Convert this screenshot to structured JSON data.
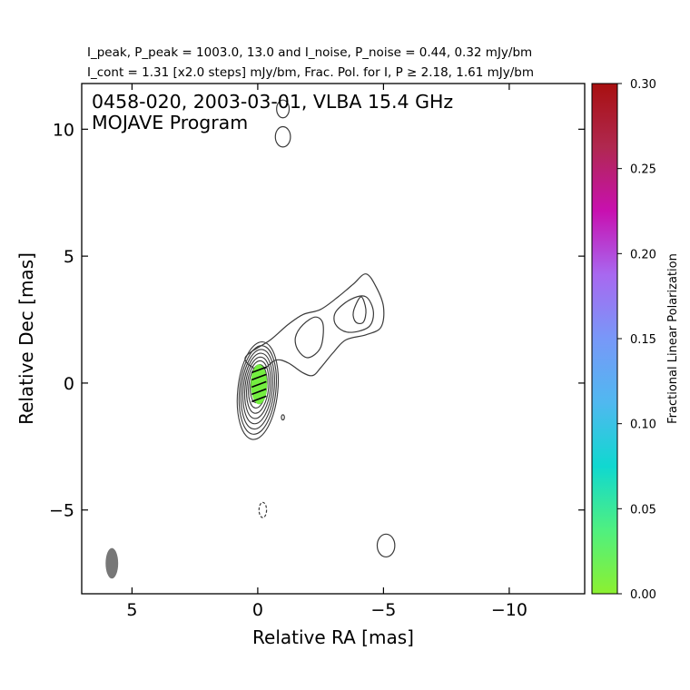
{
  "header": {
    "line1": "I_peak, P_peak = 1003.0, 13.0 and I_noise, P_noise = 0.44, 0.32 mJy/bm",
    "line2": "I_cont = 1.31 [x2.0 steps] mJy/bm, Frac. Pol. for I, P ≥ 2.18, 1.61 mJy/bm"
  },
  "inset_title": {
    "line1": "0458-020, 2003-03-01, VLBA 15.4 GHz",
    "line2": "MOJAVE Program"
  },
  "colorbar": {
    "label": "Fractional Linear Polarization",
    "range": [
      0.0,
      0.3
    ],
    "ticks": [
      "0.00",
      "0.05",
      "0.10",
      "0.15",
      "0.20",
      "0.25",
      "0.30"
    ],
    "colors": [
      "#8cf030",
      "#4ff080",
      "#10d8d0",
      "#50b8f0",
      "#7898f8",
      "#a868f0",
      "#c810b0",
      "#b02850",
      "#a81010"
    ]
  },
  "chart_data": {
    "type": "contour",
    "xlabel": "Relative RA [mas]",
    "ylabel": "Relative Dec [mas]",
    "xlim": [
      7,
      -13
    ],
    "ylim": [
      -8.3,
      11.8
    ],
    "xticks": [
      5,
      0,
      -5,
      -10
    ],
    "yticks": [
      10,
      5,
      0,
      -5
    ],
    "xtick_labels": [
      "5",
      "0",
      "−5",
      "−10"
    ],
    "ytick_labels": [
      "10",
      "5",
      "0",
      "−5"
    ],
    "core": {
      "ra": 0.0,
      "dec": -0.3,
      "ncontours": 10
    },
    "jet_contours": [
      {
        "level": 1,
        "points": [
          [
            0.5,
            1.0
          ],
          [
            -0.5,
            1.7
          ],
          [
            -1.2,
            2.3
          ],
          [
            -1.8,
            2.7
          ],
          [
            -2.5,
            2.9
          ],
          [
            -3.2,
            3.4
          ],
          [
            -3.8,
            3.9
          ],
          [
            -4.3,
            4.3
          ],
          [
            -4.7,
            3.8
          ],
          [
            -5.0,
            3.0
          ],
          [
            -4.9,
            2.2
          ],
          [
            -4.3,
            1.9
          ],
          [
            -3.5,
            1.7
          ],
          [
            -3.0,
            1.2
          ],
          [
            -2.5,
            0.6
          ],
          [
            -2.2,
            0.3
          ],
          [
            -1.8,
            0.4
          ],
          [
            -1.2,
            0.8
          ],
          [
            -0.7,
            0.9
          ],
          [
            -0.1,
            0.5
          ]
        ]
      },
      {
        "level": 2,
        "points": [
          [
            -1.5,
            1.8
          ],
          [
            -1.8,
            2.3
          ],
          [
            -2.3,
            2.6
          ],
          [
            -2.6,
            2.3
          ],
          [
            -2.5,
            1.4
          ],
          [
            -2.0,
            1.0
          ],
          [
            -1.6,
            1.3
          ]
        ]
      },
      {
        "level": 3,
        "points": [
          [
            -3.1,
            2.8
          ],
          [
            -3.7,
            3.3
          ],
          [
            -4.3,
            3.4
          ],
          [
            -4.6,
            2.8
          ],
          [
            -4.4,
            2.2
          ],
          [
            -3.6,
            2.0
          ],
          [
            -3.1,
            2.3
          ]
        ]
      },
      {
        "level": 4,
        "points": [
          [
            -3.8,
            2.8
          ],
          [
            -4.1,
            3.4
          ],
          [
            -4.3,
            2.9
          ],
          [
            -4.2,
            2.4
          ],
          [
            -3.9,
            2.4
          ]
        ]
      }
    ],
    "isolated_contours": [
      {
        "ra": -1.0,
        "dec": 10.8,
        "rx": 0.25,
        "ry": 0.35
      },
      {
        "ra": -1.0,
        "dec": 9.7,
        "rx": 0.3,
        "ry": 0.4
      },
      {
        "ra": -5.1,
        "dec": -6.4,
        "rx": 0.35,
        "ry": 0.45
      },
      {
        "ra": -0.2,
        "dec": -5.0,
        "rx": 0.15,
        "ry": 0.3,
        "dashed": true
      },
      {
        "ra": -1.0,
        "dec": -1.35,
        "rx": 0.06,
        "ry": 0.1
      }
    ],
    "polarization": {
      "ra": -0.05,
      "dec": -0.05,
      "fraction": 0.01
    },
    "beam": {
      "ra": 5.8,
      "dec": -7.1,
      "major_mas": 1.2,
      "minor_mas": 0.5
    }
  }
}
